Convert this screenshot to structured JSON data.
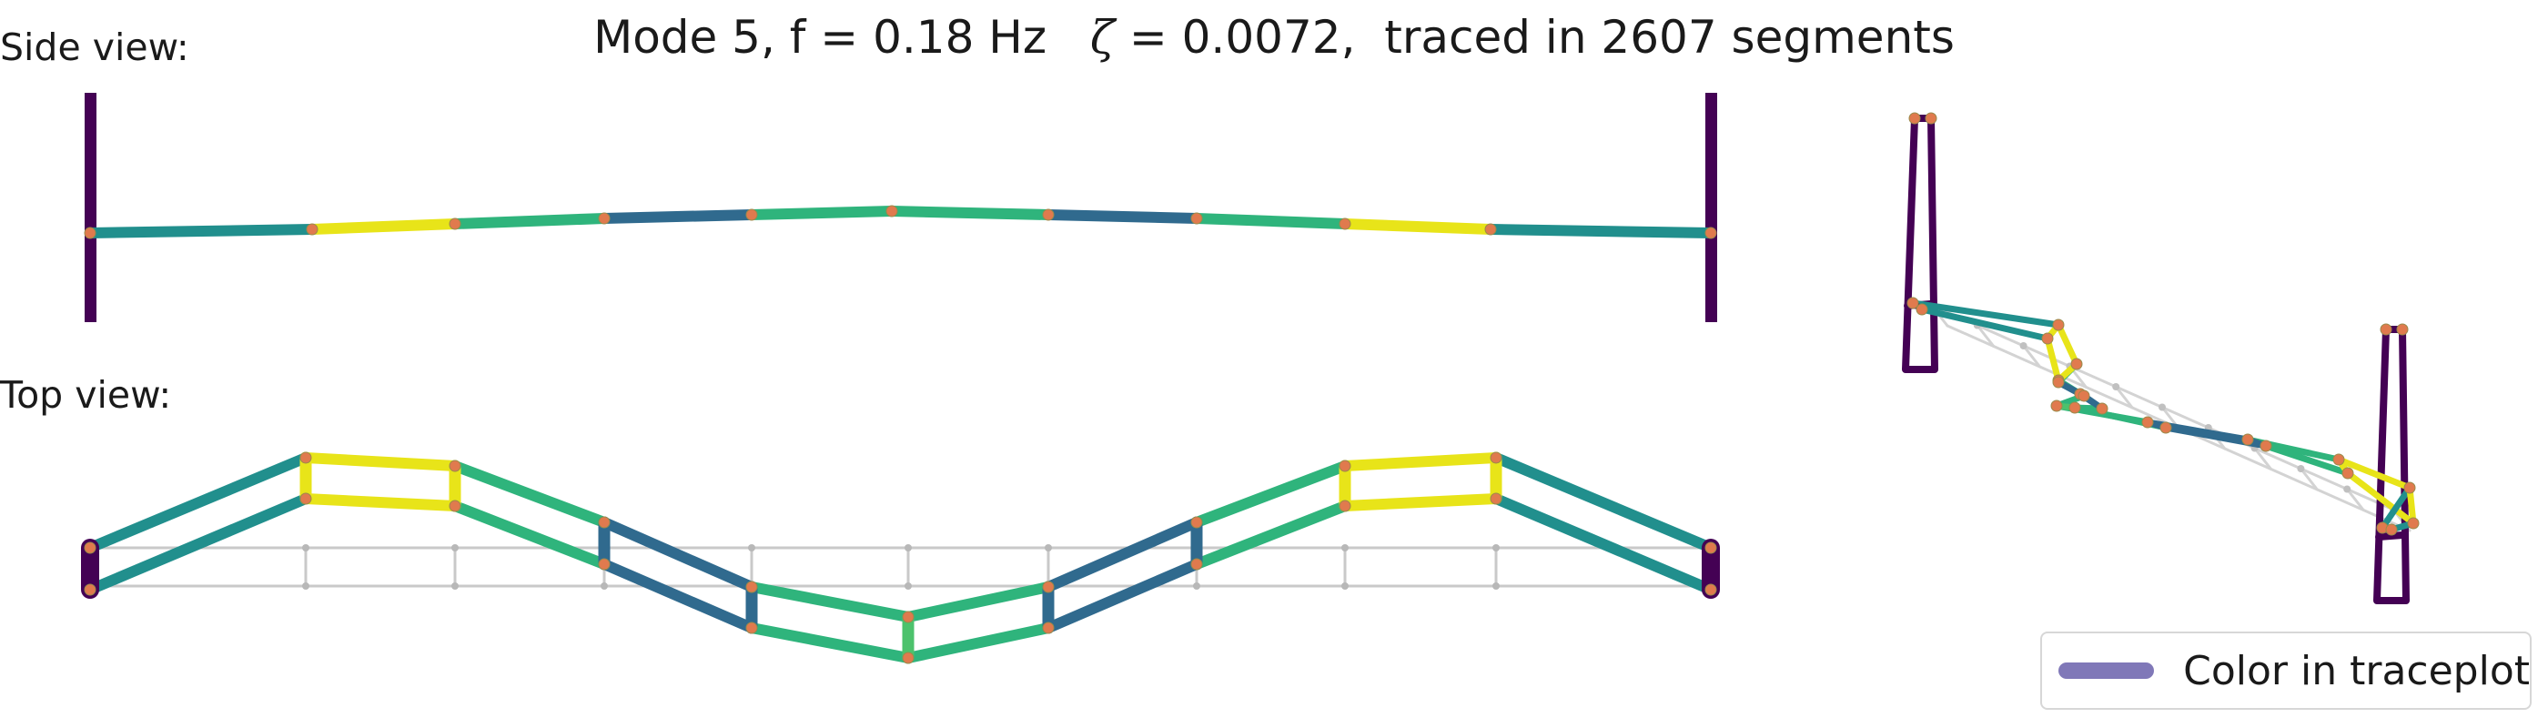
{
  "title": {
    "prefix": "Mode 5, f = 0.18 Hz   ",
    "zeta_symbol": "ζ",
    "suffix": " = 0.0072,  traced in 2607 segments"
  },
  "views": {
    "side": "Side view:",
    "top": "Top view:"
  },
  "legend": {
    "label": "Color in traceplot",
    "swatch_color": "#8078b8"
  },
  "colors": {
    "tower": "#440154",
    "node": "#e07a4e",
    "undeformed": "#c9c9c9",
    "yellow": "#e8e419",
    "green": "#2fb47c",
    "teal": "#218f8d",
    "blue": "#306a8e",
    "lightgreen": "#4cc26c"
  }
}
